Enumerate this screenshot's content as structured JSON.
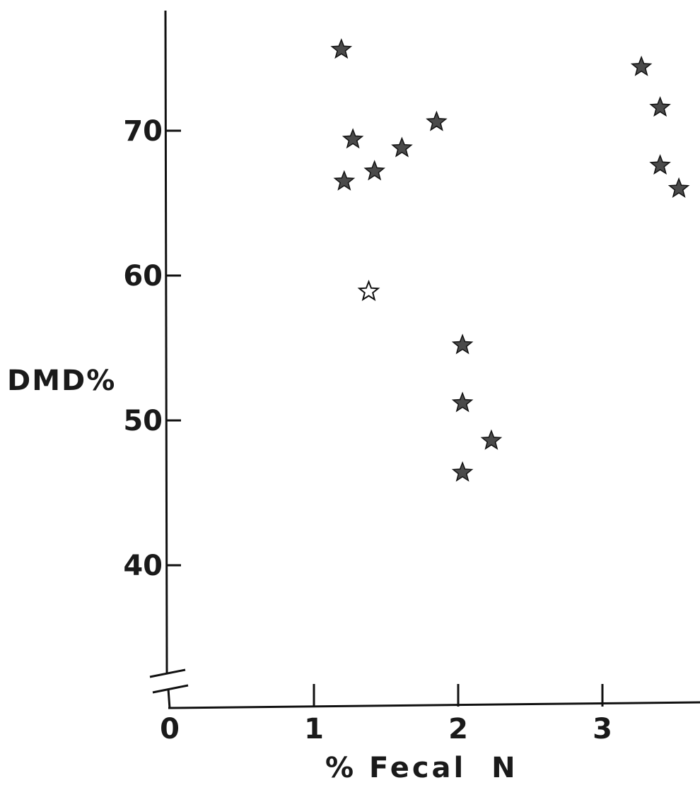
{
  "chart_data": {
    "type": "scatter",
    "title": "",
    "xlabel": "% Fecal  N",
    "ylabel": "DMD%",
    "xlim": [
      0,
      3.6
    ],
    "ylim": [
      33,
      78
    ],
    "x_ticks": [
      {
        "value": 0,
        "label": "0"
      },
      {
        "value": 1,
        "label": "1"
      },
      {
        "value": 2,
        "label": "2"
      },
      {
        "value": 3,
        "label": "3"
      }
    ],
    "y_ticks": [
      {
        "value": 40,
        "label": "40"
      },
      {
        "value": 50,
        "label": "50"
      },
      {
        "value": 60,
        "label": "60"
      },
      {
        "value": 70,
        "label": "70"
      }
    ],
    "y_axis_break": true,
    "grid": false,
    "marker": "star",
    "points": [
      {
        "x": 1.19,
        "y": 75.6,
        "filled": true
      },
      {
        "x": 1.27,
        "y": 69.4,
        "filled": true
      },
      {
        "x": 1.21,
        "y": 66.5,
        "filled": true
      },
      {
        "x": 1.42,
        "y": 67.2,
        "filled": true
      },
      {
        "x": 1.38,
        "y": 58.9,
        "filled": false
      },
      {
        "x": 1.61,
        "y": 68.8,
        "filled": true
      },
      {
        "x": 1.85,
        "y": 70.6,
        "filled": true
      },
      {
        "x": 2.03,
        "y": 55.2,
        "filled": true
      },
      {
        "x": 2.03,
        "y": 51.2,
        "filled": true
      },
      {
        "x": 2.03,
        "y": 46.4,
        "filled": true
      },
      {
        "x": 2.23,
        "y": 48.6,
        "filled": true
      },
      {
        "x": 3.27,
        "y": 74.4,
        "filled": true
      },
      {
        "x": 3.4,
        "y": 71.6,
        "filled": true
      },
      {
        "x": 3.4,
        "y": 67.6,
        "filled": true
      },
      {
        "x": 3.53,
        "y": 66.0,
        "filled": true
      }
    ],
    "colors": {
      "axis": "#111111",
      "marker_fill": "#4a4a4a",
      "text": "#1a1a1a"
    }
  }
}
